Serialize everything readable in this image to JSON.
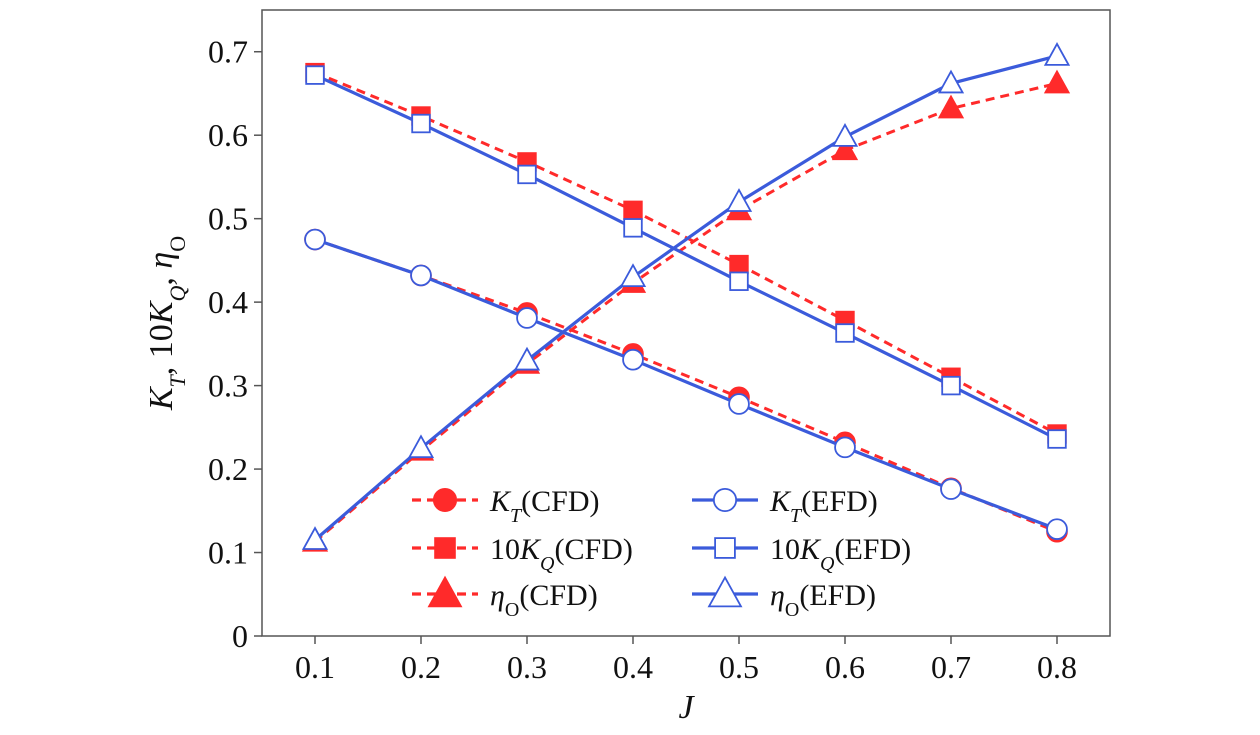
{
  "chart_data": {
    "type": "line",
    "title": "",
    "xlabel": "J",
    "ylabel": {
      "k": "K",
      "t": "T",
      "sep1": ", 10",
      "kq": "K",
      "q": "Q",
      "sep2": ", ",
      "eta": "η",
      "o": "O"
    },
    "xlim": [
      0.05,
      0.85
    ],
    "ylim": [
      0,
      0.75
    ],
    "x_ticks": [
      "0.1",
      "0.2",
      "0.3",
      "0.4",
      "0.5",
      "0.6",
      "0.7",
      "0.8"
    ],
    "y_ticks": [
      "0",
      "0.1",
      "0.2",
      "0.3",
      "0.4",
      "0.5",
      "0.6",
      "0.7"
    ],
    "x_tick_values": [
      0.1,
      0.2,
      0.3,
      0.4,
      0.5,
      0.6,
      0.7,
      0.8
    ],
    "y_tick_values": [
      0,
      0.1,
      0.2,
      0.3,
      0.4,
      0.5,
      0.6,
      0.7
    ],
    "grid": false,
    "legend_position": "bottom-center",
    "colors": {
      "cfd": "#ff2a2a",
      "efd": "#3b5bdb"
    },
    "x": [
      0.1,
      0.2,
      0.3,
      0.4,
      0.5,
      0.6,
      0.7,
      0.8
    ],
    "series": [
      {
        "id": "kt-cfd",
        "name": "K_T(CFD)",
        "sym": "K",
        "sub": "T",
        "pre": "",
        "suffix": "(CFD)",
        "group": "cfd",
        "marker": "circle",
        "filled": true,
        "dashed": true,
        "values": [
          0.475,
          0.432,
          0.387,
          0.338,
          0.286,
          0.232,
          0.177,
          0.125
        ]
      },
      {
        "id": "kq-cfd",
        "name": "10K_Q(CFD)",
        "sym": "K",
        "sub": "Q",
        "pre": "10",
        "suffix": "(CFD)",
        "group": "cfd",
        "marker": "square",
        "filled": true,
        "dashed": true,
        "values": [
          0.675,
          0.623,
          0.568,
          0.51,
          0.445,
          0.378,
          0.31,
          0.242
        ]
      },
      {
        "id": "eta-cfd",
        "name": "η_O(CFD)",
        "sym": "η",
        "sub": "O",
        "pre": "",
        "suffix": "(CFD)",
        "group": "cfd",
        "marker": "triangle",
        "filled": true,
        "dashed": true,
        "values": [
          0.113,
          0.222,
          0.326,
          0.423,
          0.51,
          0.582,
          0.632,
          0.662
        ]
      },
      {
        "id": "kt-efd",
        "name": "K_T(EFD)",
        "sym": "K",
        "sub": "T",
        "pre": "",
        "suffix": "(EFD)",
        "group": "efd",
        "marker": "circle",
        "filled": false,
        "dashed": false,
        "values": [
          0.475,
          0.432,
          0.381,
          0.331,
          0.278,
          0.226,
          0.176,
          0.128
        ]
      },
      {
        "id": "kq-efd",
        "name": "10K_Q(EFD)",
        "sym": "K",
        "sub": "Q",
        "pre": "10",
        "suffix": "(EFD)",
        "group": "efd",
        "marker": "square",
        "filled": false,
        "dashed": false,
        "values": [
          0.672,
          0.614,
          0.553,
          0.489,
          0.425,
          0.363,
          0.3,
          0.236
        ]
      },
      {
        "id": "eta-efd",
        "name": "η_O(EFD)",
        "sym": "η",
        "sub": "O",
        "pre": "",
        "suffix": "(EFD)",
        "group": "efd",
        "marker": "triangle",
        "filled": false,
        "dashed": false,
        "values": [
          0.115,
          0.225,
          0.33,
          0.43,
          0.52,
          0.598,
          0.662,
          0.695
        ]
      }
    ]
  }
}
